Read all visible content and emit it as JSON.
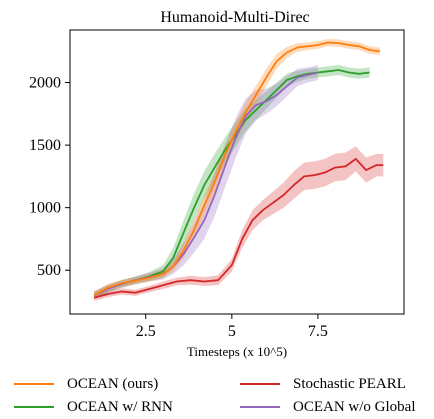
{
  "chart_data": {
    "type": "line",
    "title": "Humanoid-Multi-Direc",
    "xlabel": "Timesteps (x 10^5)",
    "ylabel": "",
    "xlim": [
      0.3,
      10.0
    ],
    "ylim": [
      150,
      2420
    ],
    "xticks": [
      2.5,
      5,
      7.5
    ],
    "xtick_labels": [
      "2.5",
      "5",
      "7.5"
    ],
    "yticks": [
      500,
      1000,
      1500,
      2000
    ],
    "ytick_labels": [
      "500",
      "1000",
      "1500",
      "2000"
    ],
    "grid": false,
    "legend_position": "bottom",
    "series": [
      {
        "name": "OCEAN (ours)",
        "color": "#ff7f0e",
        "x": [
          1.0,
          1.4,
          1.8,
          2.2,
          2.6,
          3.0,
          3.3,
          3.6,
          3.9,
          4.2,
          4.5,
          4.8,
          5.1,
          5.4,
          5.7,
          6.0,
          6.3,
          6.6,
          6.9,
          7.2,
          7.5,
          7.8,
          8.1,
          8.4,
          8.7,
          9.0,
          9.3
        ],
        "y": [
          300,
          360,
          395,
          415,
          440,
          470,
          530,
          660,
          820,
          1020,
          1200,
          1420,
          1600,
          1760,
          1900,
          2040,
          2170,
          2240,
          2280,
          2290,
          2300,
          2320,
          2315,
          2300,
          2290,
          2260,
          2250
        ],
        "band": [
          30,
          30,
          30,
          30,
          30,
          35,
          40,
          60,
          70,
          80,
          80,
          80,
          80,
          80,
          75,
          70,
          60,
          45,
          35,
          30,
          30,
          30,
          30,
          30,
          30,
          30,
          30
        ]
      },
      {
        "name": "OCEAN w/ RNN",
        "color": "#2ca02c",
        "x": [
          1.0,
          1.4,
          1.8,
          2.2,
          2.6,
          3.0,
          3.3,
          3.6,
          3.9,
          4.2,
          4.5,
          4.8,
          5.1,
          5.4,
          5.7,
          6.0,
          6.3,
          6.6,
          6.9,
          7.2,
          7.5,
          7.8,
          8.1,
          8.4,
          8.7,
          9.0
        ],
        "y": [
          300,
          355,
          390,
          420,
          450,
          490,
          600,
          800,
          1000,
          1180,
          1320,
          1460,
          1580,
          1700,
          1780,
          1860,
          1940,
          2020,
          2050,
          2070,
          2080,
          2090,
          2100,
          2080,
          2070,
          2080
        ],
        "band": [
          30,
          30,
          30,
          30,
          35,
          50,
          80,
          100,
          110,
          110,
          110,
          100,
          100,
          90,
          80,
          70,
          60,
          50,
          45,
          40,
          40,
          40,
          40,
          40,
          40,
          40
        ]
      },
      {
        "name": "Stochastic PEARL",
        "color": "#d62728",
        "x": [
          1.0,
          1.4,
          1.8,
          2.2,
          2.6,
          3.0,
          3.4,
          3.8,
          4.2,
          4.6,
          5.0,
          5.3,
          5.6,
          5.9,
          6.2,
          6.5,
          6.8,
          7.1,
          7.4,
          7.7,
          8.0,
          8.3,
          8.6,
          8.9,
          9.2,
          9.4
        ],
        "y": [
          280,
          310,
          330,
          320,
          350,
          380,
          410,
          420,
          410,
          420,
          540,
          750,
          900,
          980,
          1040,
          1100,
          1180,
          1250,
          1260,
          1280,
          1320,
          1330,
          1390,
          1300,
          1340,
          1340
        ],
        "band": [
          25,
          25,
          25,
          25,
          25,
          30,
          30,
          35,
          35,
          40,
          50,
          70,
          80,
          80,
          90,
          100,
          110,
          110,
          110,
          110,
          110,
          110,
          100,
          100,
          90,
          90
        ]
      },
      {
        "name": "OCEAN w/o Global",
        "color": "#9467bd",
        "x": [
          1.0,
          1.4,
          1.8,
          2.2,
          2.6,
          3.0,
          3.3,
          3.6,
          3.9,
          4.2,
          4.5,
          4.8,
          5.1,
          5.4,
          5.7,
          6.0,
          6.3,
          6.6,
          6.9,
          7.2,
          7.5
        ],
        "y": [
          300,
          350,
          390,
          420,
          445,
          470,
          530,
          630,
          760,
          900,
          1100,
          1330,
          1550,
          1730,
          1820,
          1850,
          1900,
          1970,
          2040,
          2060,
          2080
        ],
        "band": [
          30,
          30,
          30,
          30,
          35,
          45,
          60,
          90,
          120,
          150,
          170,
          170,
          160,
          140,
          120,
          100,
          90,
          80,
          70,
          60,
          60
        ]
      }
    ]
  },
  "legend": {
    "items": [
      {
        "label": "OCEAN (ours)",
        "color": "#ff7f0e"
      },
      {
        "label": "Stochastic PEARL",
        "color": "#d62728"
      },
      {
        "label": "OCEAN w/ RNN",
        "color": "#2ca02c"
      },
      {
        "label": "OCEAN w/o Global",
        "color": "#9467bd"
      }
    ]
  }
}
